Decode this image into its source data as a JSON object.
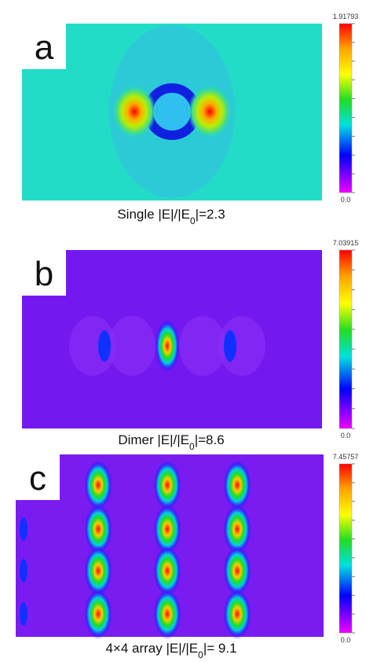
{
  "panels": [
    {
      "label": "a",
      "colorbar_max": "1.91793",
      "colorbar_min": "0.0",
      "caption": {
        "pre": "Single |E|/|E",
        "sub": "0",
        "post": "|=2.3"
      }
    },
    {
      "label": "b",
      "colorbar_max": "7.03915",
      "colorbar_min": "0.0",
      "caption": {
        "pre": "Dimer  |E|/|E",
        "sub": "0",
        "post": "|=8.6"
      }
    },
    {
      "label": "c",
      "colorbar_max": "7.45757",
      "colorbar_min": "0.0",
      "caption": {
        "pre": "4×4 array |E|/|E",
        "sub": "0",
        "post": "|= 9.1"
      }
    }
  ]
}
